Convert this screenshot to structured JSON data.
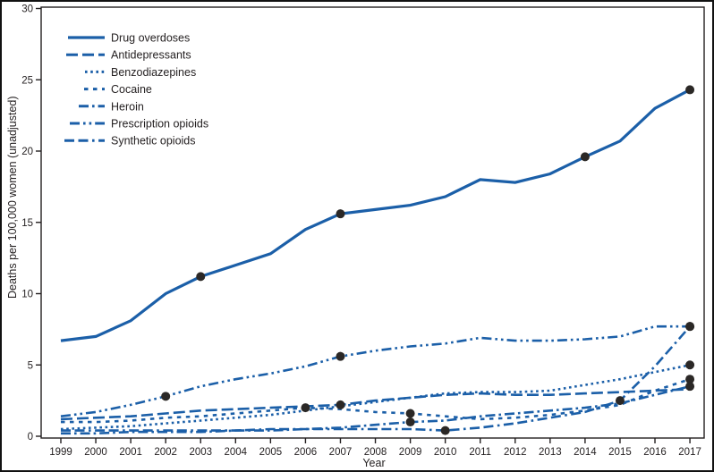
{
  "figure": {
    "y_axis_label": "Deaths per 100,000 women (unadjusted)",
    "x_axis_label": "Year",
    "colors": {
      "line_blue": "#1b5fa8",
      "marker_black": "#2b2826",
      "text": "#231f20",
      "frame": "#231f20"
    }
  },
  "chart_data": {
    "type": "line",
    "title": "",
    "xlabel": "Year",
    "ylabel": "Deaths per 100,000 women (unadjusted)",
    "x": [
      1999,
      2000,
      2001,
      2002,
      2003,
      2004,
      2005,
      2006,
      2007,
      2008,
      2009,
      2010,
      2011,
      2012,
      2013,
      2014,
      2015,
      2016,
      2017
    ],
    "x_tick_labels": [
      "1999",
      "2000",
      "2001",
      "2002",
      "2003",
      "2004",
      "2005",
      "2006",
      "2007",
      "2008",
      "2009",
      "2010",
      "2011",
      "2012",
      "2013",
      "2014",
      "2015",
      "2016",
      "2017"
    ],
    "y_ticks": [
      0,
      5,
      10,
      15,
      20,
      25,
      30
    ],
    "xlim": [
      1999,
      2017
    ],
    "ylim": [
      0,
      30
    ],
    "grid": false,
    "legend_position": "top-left-inside",
    "marker_note": "black dots mark joinpoint years",
    "series": [
      {
        "name": "Drug overdoses",
        "style": "solid",
        "values": [
          6.7,
          7.0,
          8.1,
          10.0,
          11.2,
          12.0,
          12.8,
          14.5,
          15.6,
          15.9,
          16.2,
          16.8,
          18.0,
          17.8,
          18.4,
          19.6,
          20.7,
          23.0,
          24.3
        ],
        "markers": [
          [
            2003,
            11.2
          ],
          [
            2007,
            15.6
          ],
          [
            2014,
            19.6
          ],
          [
            2017,
            24.3
          ]
        ]
      },
      {
        "name": "Antidepressants",
        "style": "long-dash",
        "values": [
          1.2,
          1.3,
          1.4,
          1.6,
          1.8,
          1.9,
          2.0,
          2.1,
          2.2,
          2.5,
          2.7,
          2.9,
          3.0,
          2.9,
          2.9,
          3.0,
          3.1,
          3.2,
          3.3
        ],
        "markers": [
          [
            2007,
            2.2
          ]
        ]
      },
      {
        "name": "Benzodiazepines",
        "style": "dot",
        "values": [
          0.5,
          0.6,
          0.7,
          0.9,
          1.1,
          1.3,
          1.5,
          1.8,
          2.1,
          2.4,
          2.7,
          3.0,
          3.1,
          3.1,
          3.2,
          3.6,
          4.0,
          4.5,
          5.0
        ],
        "markers": [
          [
            2017,
            5.0
          ]
        ]
      },
      {
        "name": "Cocaine",
        "style": "square-dash",
        "values": [
          1.0,
          1.0,
          1.1,
          1.3,
          1.4,
          1.6,
          1.8,
          2.0,
          1.9,
          1.7,
          1.6,
          1.4,
          1.2,
          1.3,
          1.5,
          1.8,
          2.2,
          3.2,
          4.0
        ],
        "markers": [
          [
            2006,
            2.0
          ],
          [
            2009,
            1.6
          ],
          [
            2017,
            4.0
          ]
        ]
      },
      {
        "name": "Heroin",
        "style": "dash-dot",
        "values": [
          0.2,
          0.2,
          0.3,
          0.3,
          0.3,
          0.4,
          0.4,
          0.5,
          0.6,
          0.8,
          1.0,
          1.1,
          1.4,
          1.6,
          1.8,
          2.0,
          2.3,
          2.9,
          3.5
        ],
        "markers": [
          [
            2009,
            1.0
          ],
          [
            2017,
            3.5
          ]
        ]
      },
      {
        "name": "Prescription opioids",
        "style": "dash-dot-dot",
        "values": [
          1.4,
          1.7,
          2.2,
          2.8,
          3.5,
          4.0,
          4.4,
          4.9,
          5.6,
          6.0,
          6.3,
          6.5,
          6.9,
          6.7,
          6.7,
          6.8,
          7.0,
          7.7,
          7.7
        ],
        "markers": [
          [
            2002,
            2.8
          ],
          [
            2007,
            5.6
          ],
          [
            2017,
            7.7
          ]
        ]
      },
      {
        "name": "Synthetic opioids",
        "style": "dash-dash-dot",
        "values": [
          0.4,
          0.4,
          0.4,
          0.4,
          0.4,
          0.4,
          0.5,
          0.5,
          0.5,
          0.5,
          0.5,
          0.4,
          0.6,
          0.9,
          1.3,
          1.7,
          2.5,
          4.9,
          7.7
        ],
        "markers": [
          [
            2010,
            0.4
          ],
          [
            2015,
            2.5
          ],
          [
            2017,
            7.7
          ]
        ]
      }
    ]
  }
}
